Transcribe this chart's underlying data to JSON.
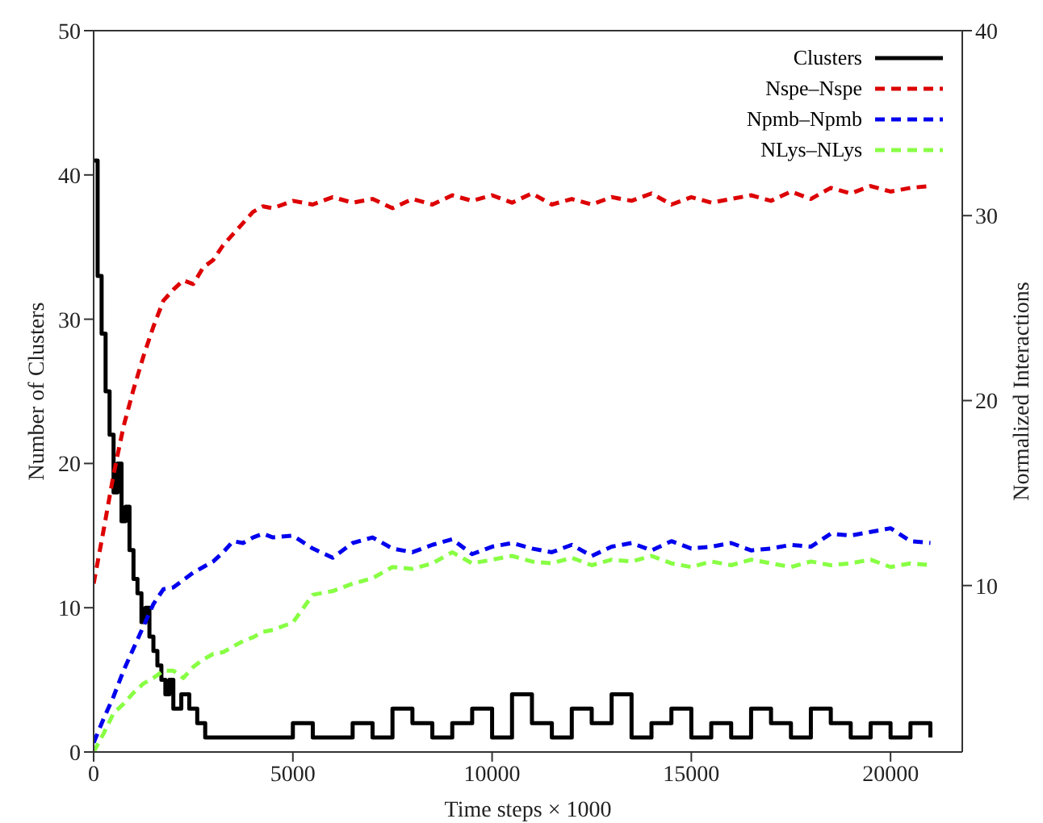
{
  "chart_data": {
    "type": "line",
    "xlabel": "Time steps × 1000",
    "ylabel": "Number of Clusters",
    "y2label": "Normalized Interactions",
    "x": [
      0,
      250,
      500,
      750,
      1000,
      1250,
      1500,
      1750,
      2000,
      2250,
      2500,
      2750,
      3000,
      3250,
      3500,
      3750,
      4000,
      4250,
      4500,
      5000,
      5500,
      6000,
      6500,
      7000,
      7500,
      8000,
      8500,
      9000,
      9500,
      10000,
      10500,
      11000,
      11500,
      12000,
      12500,
      13000,
      13500,
      14000,
      14500,
      15000,
      15500,
      16000,
      16500,
      17000,
      17500,
      18000,
      18500,
      19000,
      19500,
      20000,
      20500,
      21000
    ],
    "xlim": [
      0,
      21800
    ],
    "xticks": [
      0,
      5000,
      10000,
      15000,
      20000
    ],
    "ylim": [
      0,
      50
    ],
    "yticks": [
      0,
      10,
      20,
      30,
      40,
      50
    ],
    "y2lim": [
      1,
      40
    ],
    "y2ticks": [
      10,
      20,
      30,
      40
    ],
    "grid": false,
    "legend": "top right",
    "marker": "none",
    "series": [
      {
        "name": "Clusters",
        "type": "step",
        "color": "#000000",
        "line_style": "solid",
        "x": [
          0,
          100,
          200,
          300,
          400,
          500,
          600,
          700,
          800,
          900,
          1000,
          1100,
          1200,
          1300,
          1400,
          1500,
          1600,
          1700,
          1800,
          1900,
          2000,
          2200,
          2400,
          2600,
          2800,
          3000,
          3500,
          4000,
          4500,
          5000,
          5500,
          6000,
          6500,
          7000,
          7500,
          8000,
          8500,
          9000,
          9500,
          10000,
          10500,
          11000,
          11500,
          12000,
          12500,
          13000,
          13500,
          14000,
          14500,
          15000,
          15500,
          16000,
          16500,
          17000,
          17500,
          18000,
          18500,
          19000,
          19500,
          20000,
          20500,
          21000
        ],
        "values": [
          41,
          33,
          29,
          25,
          22,
          18,
          20,
          16,
          17,
          14,
          12,
          11,
          9,
          10,
          8,
          7,
          6,
          5,
          4,
          5,
          3,
          4,
          3,
          2,
          1,
          1,
          1,
          1,
          1,
          2,
          1,
          1,
          2,
          1,
          3,
          2,
          1,
          2,
          3,
          1,
          4,
          2,
          1,
          3,
          2,
          4,
          1,
          2,
          3,
          1,
          2,
          1,
          3,
          2,
          1,
          3,
          2,
          1,
          2,
          1,
          2,
          1
        ]
      },
      {
        "name": "Nspe–Nspe",
        "color": "#dd0000",
        "axis": "y2",
        "line_style": "dashed",
        "values": [
          10.1,
          13.0,
          16.0,
          18.6,
          20.6,
          22.4,
          24.0,
          25.4,
          26.0,
          26.5,
          26.3,
          27.2,
          27.6,
          28.4,
          29.0,
          29.6,
          30.2,
          30.5,
          30.4,
          30.8,
          30.6,
          31.0,
          30.7,
          30.9,
          30.4,
          30.9,
          30.6,
          31.1,
          30.8,
          31.1,
          30.7,
          31.2,
          30.6,
          30.9,
          30.6,
          31.0,
          30.8,
          31.2,
          30.6,
          31.0,
          30.7,
          30.9,
          31.1,
          30.8,
          31.3,
          30.9,
          31.5,
          31.2,
          31.6,
          31.3,
          31.5,
          31.6
        ]
      },
      {
        "name": "Npmb–Npmb",
        "color": "#0000ee",
        "axis": "y2",
        "line_style": "dashed",
        "values": [
          1.5,
          2.8,
          4.0,
          5.4,
          6.6,
          7.8,
          9.0,
          9.8,
          9.9,
          10.3,
          10.7,
          11.0,
          11.3,
          11.8,
          12.4,
          12.3,
          12.6,
          12.8,
          12.6,
          12.7,
          12.0,
          11.5,
          12.3,
          12.6,
          12.0,
          11.8,
          12.2,
          12.5,
          11.7,
          12.1,
          12.3,
          12.0,
          11.8,
          12.2,
          11.6,
          12.1,
          12.3,
          11.9,
          12.4,
          12.0,
          12.1,
          12.3,
          11.9,
          12.0,
          12.2,
          12.1,
          12.8,
          12.7,
          12.9,
          13.1,
          12.4,
          12.3
        ]
      },
      {
        "name": "NLys–NLys",
        "color": "#88ff44",
        "axis": "y2",
        "line_style": "dashed",
        "values": [
          1.0,
          2.0,
          3.1,
          3.6,
          4.2,
          4.7,
          5.0,
          5.4,
          5.4,
          5.0,
          5.6,
          6.0,
          6.3,
          6.4,
          6.7,
          7.0,
          7.2,
          7.5,
          7.6,
          8.0,
          9.5,
          9.7,
          10.1,
          10.4,
          11.0,
          10.9,
          11.2,
          11.8,
          11.2,
          11.4,
          11.6,
          11.3,
          11.2,
          11.5,
          11.1,
          11.4,
          11.3,
          11.6,
          11.2,
          11.0,
          11.3,
          11.1,
          11.4,
          11.2,
          11.0,
          11.3,
          11.1,
          11.2,
          11.4,
          11.0,
          11.2,
          11.1
        ]
      }
    ]
  }
}
